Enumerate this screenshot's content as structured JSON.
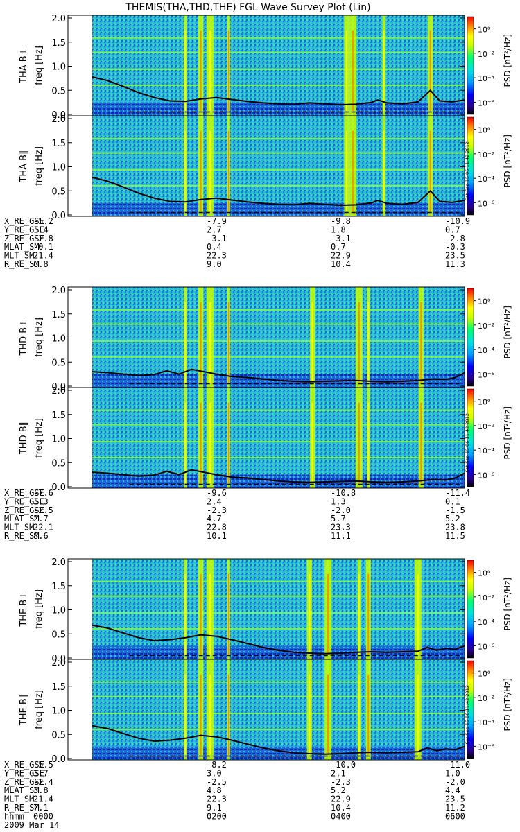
{
  "title": "THEMIS(THA,THD,THE) FGL Wave Survey Plot (Lin)",
  "colorbar": {
    "label": "PSD [nT²/Hz]",
    "tick_labels": [
      "10⁰",
      "10⁻²",
      "10⁻⁴",
      "10⁻⁶"
    ],
    "tick_exponents": [
      0,
      -2,
      -4,
      -6
    ],
    "range_exponent": [
      -7,
      1
    ],
    "colors": [
      "#000000",
      "#2a0090",
      "#0000ff",
      "#00a0ff",
      "#00e0e0",
      "#00ff70",
      "#c8ff00",
      "#ffff00",
      "#ff8800",
      "#ff0000"
    ]
  },
  "timestamp_stamp": "Sat Sep 15 06:11:42 2012",
  "chart_data": [
    {
      "type": "heatmap",
      "group": "THA",
      "panels": [
        {
          "ylabel": "THA B⊥",
          "unit_label": "freq [Hz]"
        },
        {
          "ylabel": "THA B∥",
          "unit_label": "freq [Hz]"
        }
      ],
      "ylim": [
        0,
        2.0
      ],
      "y_ticks": [
        "0.0",
        "0.5",
        "1.0",
        "1.5",
        "2.0"
      ],
      "y_tick_values": [
        0,
        0.5,
        1.0,
        1.5,
        2.0
      ],
      "overlay_line_hz": [
        0.78,
        0.7,
        0.58,
        0.45,
        0.35,
        0.28,
        0.27,
        0.32,
        0.35,
        0.31,
        0.27,
        0.24,
        0.22,
        0.21,
        0.24,
        0.22,
        0.2,
        0.21,
        0.25,
        0.3,
        0.24,
        0.22,
        0.26,
        0.5,
        0.28,
        0.26,
        0.3
      ],
      "line_x_hours": [
        0,
        0.25,
        0.5,
        0.75,
        1.0,
        1.25,
        1.5,
        1.75,
        2.0,
        2.25,
        2.5,
        2.75,
        3.0,
        3.25,
        3.5,
        3.75,
        4.0,
        4.25,
        4.5,
        4.6,
        4.75,
        5.0,
        5.25,
        5.45,
        5.6,
        5.8,
        6.0
      ],
      "vertical_bands_hours": [
        1.5,
        1.75,
        1.9,
        2.2,
        4.1,
        4.2,
        4.7,
        5.45
      ],
      "ephemeris": {
        "rows": [
          {
            "label": "X_RE_GSE",
            "values": [
              "-5.2",
              "-7.9",
              "-9.8",
              "-10.9"
            ]
          },
          {
            "label": "Y_RE_GSE",
            "values": [
              "3.4",
              "2.7",
              "1.8",
              "0.7"
            ]
          },
          {
            "label": "Z_RE_GSE",
            "values": [
              "-2.8",
              "-3.1",
              "-3.1",
              "-2.8"
            ]
          },
          {
            "label": "MLAT_SM",
            "values": [
              "-0.1",
              "0.4",
              "0.7",
              "-0.3"
            ]
          },
          {
            "label": "MLT_SM",
            "values": [
              "21.4",
              "22.3",
              "22.9",
              "23.5"
            ]
          },
          {
            "label": "R_RE_SM",
            "values": [
              "6.8",
              "9.0",
              "10.4",
              "11.3"
            ]
          }
        ]
      }
    },
    {
      "type": "heatmap",
      "group": "THD",
      "panels": [
        {
          "ylabel": "THD B⊥",
          "unit_label": "freq [Hz]"
        },
        {
          "ylabel": "THD B∥",
          "unit_label": "freq [Hz]"
        }
      ],
      "ylim": [
        0,
        2.0
      ],
      "y_ticks": [
        "0.0",
        "0.5",
        "1.0",
        "1.5",
        "2.0"
      ],
      "y_tick_values": [
        0,
        0.5,
        1.0,
        1.5,
        2.0
      ],
      "overlay_line_hz": [
        0.3,
        0.28,
        0.25,
        0.22,
        0.24,
        0.32,
        0.25,
        0.35,
        0.3,
        0.25,
        0.2,
        0.18,
        0.15,
        0.12,
        0.1,
        0.09,
        0.1,
        0.11,
        0.12,
        0.1,
        0.09,
        0.1,
        0.12,
        0.15,
        0.14,
        0.18,
        0.28
      ],
      "line_x_hours": [
        0,
        0.25,
        0.5,
        0.75,
        1.0,
        1.2,
        1.4,
        1.6,
        1.8,
        2.0,
        2.25,
        2.5,
        2.75,
        3.0,
        3.25,
        3.5,
        3.75,
        4.0,
        4.25,
        4.5,
        4.75,
        5.0,
        5.25,
        5.5,
        5.7,
        5.85,
        6.0
      ],
      "vertical_bands_hours": [
        1.5,
        1.75,
        1.9,
        2.2,
        3.55,
        4.3,
        4.45,
        5.3
      ],
      "ephemeris": {
        "rows": [
          {
            "label": "X_RE_GSE",
            "values": [
              "-7.6",
              "-9.6",
              "-10.8",
              "-11.4"
            ]
          },
          {
            "label": "Y_RE_GSE",
            "values": [
              "3.3",
              "2.4",
              "1.3",
              "0.1"
            ]
          },
          {
            "label": "Z_RE_GSE",
            "values": [
              "-2.5",
              "-2.3",
              "-2.0",
              "-1.5"
            ]
          },
          {
            "label": "MLAT_SM",
            "values": [
              "2.7",
              "4.7",
              "5.7",
              "5.2"
            ]
          },
          {
            "label": "MLT_SM",
            "values": [
              "22.1",
              "22.8",
              "23.3",
              "23.8"
            ]
          },
          {
            "label": "R_RE_SM",
            "values": [
              "8.6",
              "10.1",
              "11.1",
              "11.5"
            ]
          }
        ]
      }
    },
    {
      "type": "heatmap",
      "group": "THE",
      "panels": [
        {
          "ylabel": "THE B⊥",
          "unit_label": "freq [Hz]"
        },
        {
          "ylabel": "THE B∥",
          "unit_label": "freq [Hz]"
        }
      ],
      "ylim": [
        0,
        2.0
      ],
      "y_ticks": [
        "0.0",
        "0.5",
        "1.0",
        "1.5",
        "2.0"
      ],
      "y_tick_values": [
        0,
        0.5,
        1.0,
        1.5,
        2.0
      ],
      "overlay_line_hz": [
        0.68,
        0.62,
        0.52,
        0.42,
        0.36,
        0.38,
        0.42,
        0.48,
        0.45,
        0.38,
        0.3,
        0.22,
        0.16,
        0.12,
        0.1,
        0.09,
        0.1,
        0.12,
        0.13,
        0.12,
        0.13,
        0.14,
        0.22,
        0.16,
        0.2,
        0.18,
        0.25
      ],
      "line_x_hours": [
        0,
        0.25,
        0.5,
        0.75,
        1.0,
        1.25,
        1.5,
        1.75,
        2.0,
        2.25,
        2.5,
        2.75,
        3.0,
        3.25,
        3.5,
        3.75,
        4.0,
        4.25,
        4.5,
        4.75,
        5.0,
        5.25,
        5.4,
        5.55,
        5.7,
        5.85,
        6.0
      ],
      "vertical_bands_hours": [
        1.5,
        1.75,
        1.9,
        2.2,
        3.5,
        3.8,
        4.3,
        4.45,
        5.25
      ],
      "ephemeris": {
        "rows": [
          {
            "label": "X_RE_GSE",
            "values": [
              "-5.5",
              "-8.2",
              "-10.0",
              "-11.0"
            ]
          },
          {
            "label": "Y_RE_GSE",
            "values": [
              "3.7",
              "3.0",
              "2.1",
              "1.0"
            ]
          },
          {
            "label": "Z_RE_GSE",
            "values": [
              "-2.4",
              "-2.5",
              "-2.3",
              "-2.0"
            ]
          },
          {
            "label": "MLAT_SM",
            "values": [
              "3.8",
              "4.8",
              "5.2",
              "4.4"
            ]
          },
          {
            "label": "MLT_SM",
            "values": [
              "21.4",
              "22.3",
              "22.9",
              "23.5"
            ]
          },
          {
            "label": "R_RE_SM",
            "values": [
              "7.1",
              "9.1",
              "10.4",
              "11.2"
            ]
          }
        ],
        "time_row": {
          "label": "hhmm",
          "values": [
            "0000",
            "0200",
            "0400",
            "0600"
          ]
        },
        "date": "2009 Mar 14"
      }
    }
  ],
  "xlim_hours": [
    0,
    6
  ]
}
